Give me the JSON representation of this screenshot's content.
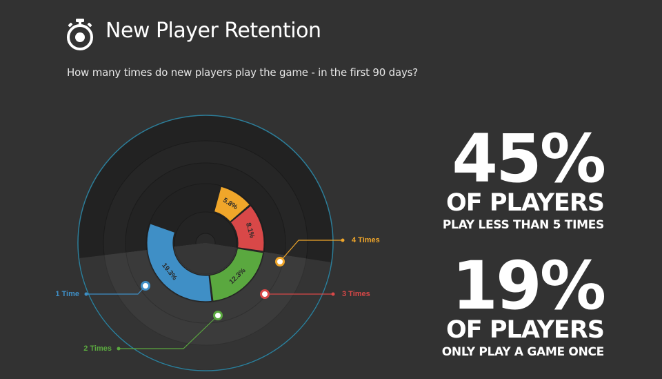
{
  "header": {
    "title": "New Player Retention",
    "subtitle": "How many times do new players play the game - in the first 90 days?"
  },
  "stats": [
    {
      "big": "45%",
      "mid": "OF PLAYERS",
      "small": "PLAY LESS THAN 5 TIMES"
    },
    {
      "big": "19%",
      "mid": "OF PLAYERS",
      "small": "ONLY PLAY A GAME ONCE"
    }
  ],
  "colors": {
    "background": "#323232",
    "one_time": "#3f8fc6",
    "two_times": "#5aa83f",
    "three_times": "#d94848",
    "four_times": "#f0a62a"
  },
  "chart_data": {
    "type": "pie",
    "title": "New Player Retention",
    "subtitle": "How many times do new players play the game - in the first 90 days?",
    "categories": [
      "1 Time",
      "2 Times",
      "3 Times",
      "4 Times"
    ],
    "values": [
      19.3,
      12.3,
      8.1,
      5.8
    ],
    "data_labels": [
      "19.3%",
      "12.3%",
      "8.1%",
      "5.8%"
    ],
    "series_colors": [
      "#3f8fc6",
      "#5aa83f",
      "#d94848",
      "#f0a62a"
    ],
    "unit": "%"
  }
}
